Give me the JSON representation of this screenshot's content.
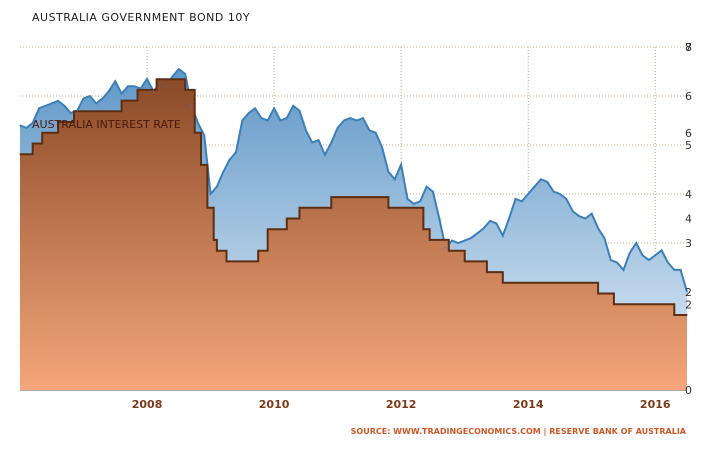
{
  "chart_data": {
    "type": "area",
    "title": "AUSTRALIA GOVERNMENT BOND 10Y",
    "source": "SOURCE: WWW.TRADINGECONOMICS.COM | RESERVE BANK OF AUSTRALIA",
    "grid": true,
    "x_tick_labels": [
      "2008",
      "2010",
      "2012",
      "2014",
      "2016"
    ],
    "x_ticks": [
      2008,
      2010,
      2012,
      2014,
      2016
    ],
    "xlim": [
      2006.0,
      2016.5
    ],
    "colors": {
      "bond_line": "#3d7fb8",
      "bond_fill_top": "#5f97c7",
      "bond_fill_bottom": "#e4eef8",
      "rate_line": "#5c2e12",
      "rate_fill_top": "#8a4a28",
      "rate_fill_bottom": "#f5a67a",
      "grid": "#c8a88a",
      "source": "#c85a2a"
    },
    "axes": {
      "bond": {
        "ylim": [
          0,
          7
        ],
        "tick_labels": [
          "7",
          "6",
          "5",
          "4",
          "3",
          "2"
        ],
        "ticks": [
          7,
          6,
          5,
          4,
          3,
          2
        ]
      },
      "rate": {
        "ylim": [
          0,
          8
        ],
        "tick_labels": [
          "8",
          "6",
          "4",
          "2",
          "0"
        ],
        "ticks": [
          8,
          6,
          4,
          2,
          0
        ]
      }
    },
    "series": [
      {
        "name": "AUSTRALIA GOVERNMENT BOND 10Y",
        "axis": "bond",
        "x": [
          2006.0,
          2006.1,
          2006.2,
          2006.3,
          2006.5,
          2006.6,
          2006.7,
          2006.8,
          2006.9,
          2007.0,
          2007.1,
          2007.2,
          2007.3,
          2007.4,
          2007.5,
          2007.6,
          2007.7,
          2007.8,
          2007.9,
          2008.0,
          2008.1,
          2008.2,
          2008.3,
          2008.4,
          2008.5,
          2008.6,
          2008.7,
          2008.8,
          2008.9,
          2009.0,
          2009.1,
          2009.2,
          2009.3,
          2009.4,
          2009.5,
          2009.6,
          2009.7,
          2009.8,
          2009.9,
          2010.0,
          2010.1,
          2010.2,
          2010.3,
          2010.4,
          2010.5,
          2010.6,
          2010.7,
          2010.8,
          2010.9,
          2011.0,
          2011.1,
          2011.2,
          2011.3,
          2011.4,
          2011.5,
          2011.6,
          2011.7,
          2011.8,
          2011.9,
          2012.0,
          2012.1,
          2012.2,
          2012.3,
          2012.4,
          2012.5,
          2012.6,
          2012.7,
          2012.8,
          2012.9,
          2013.0,
          2013.1,
          2013.2,
          2013.3,
          2013.4,
          2013.5,
          2013.6,
          2013.7,
          2013.8,
          2013.9,
          2014.0,
          2014.1,
          2014.2,
          2014.3,
          2014.4,
          2014.5,
          2014.6,
          2014.7,
          2014.8,
          2014.9,
          2015.0,
          2015.1,
          2015.2,
          2015.3,
          2015.4,
          2015.5,
          2015.6,
          2015.7,
          2015.8,
          2015.9,
          2016.0,
          2016.1,
          2016.2,
          2016.3,
          2016.4,
          2016.5
        ],
        "values": [
          5.4,
          5.35,
          5.45,
          5.75,
          5.85,
          5.9,
          5.8,
          5.65,
          5.7,
          5.95,
          6.0,
          5.85,
          5.95,
          6.1,
          6.3,
          6.05,
          6.2,
          6.2,
          6.15,
          6.35,
          6.1,
          6.25,
          6.2,
          6.4,
          6.55,
          6.45,
          5.8,
          5.45,
          5.2,
          4.0,
          4.15,
          4.45,
          4.7,
          4.85,
          5.5,
          5.65,
          5.75,
          5.55,
          5.5,
          5.75,
          5.5,
          5.55,
          5.8,
          5.7,
          5.3,
          5.05,
          5.1,
          4.8,
          5.05,
          5.35,
          5.5,
          5.55,
          5.5,
          5.55,
          5.3,
          5.25,
          4.95,
          4.45,
          4.3,
          4.6,
          3.9,
          3.8,
          3.85,
          4.15,
          4.05,
          3.5,
          2.9,
          3.05,
          3.0,
          3.05,
          3.1,
          3.2,
          3.3,
          3.45,
          3.4,
          3.15,
          3.5,
          3.9,
          3.85,
          4.0,
          4.15,
          4.3,
          4.25,
          4.05,
          4.0,
          3.9,
          3.65,
          3.55,
          3.5,
          3.6,
          3.3,
          3.1,
          2.65,
          2.6,
          2.45,
          2.8,
          3.0,
          2.75,
          2.65,
          2.75,
          2.85,
          2.6,
          2.45,
          2.45,
          2.0
        ]
      },
      {
        "name": "AUSTRALIA INTEREST RATE",
        "axis": "rate",
        "x": [
          2006.0,
          2006.2,
          2006.35,
          2006.6,
          2006.85,
          2007.6,
          2007.85,
          2008.15,
          2008.6,
          2008.75,
          2008.85,
          2008.95,
          2009.05,
          2009.1,
          2009.25,
          2009.75,
          2009.9,
          2010.2,
          2010.4,
          2010.9,
          2011.8,
          2012.35,
          2012.45,
          2012.6,
          2012.75,
          2013.0,
          2013.35,
          2013.6,
          2013.75,
          2015.1,
          2015.35,
          2016.3,
          2016.5
        ],
        "values": [
          5.5,
          5.75,
          6.0,
          6.25,
          6.5,
          6.75,
          7.0,
          7.25,
          7.0,
          6.0,
          5.25,
          4.25,
          3.5,
          3.25,
          3.0,
          3.25,
          3.75,
          4.0,
          4.25,
          4.5,
          4.25,
          3.75,
          3.5,
          3.5,
          3.25,
          3.0,
          2.75,
          2.5,
          2.5,
          2.25,
          2.0,
          1.75,
          1.75
        ]
      }
    ],
    "series_label_text": "AUSTRALIA INTEREST RATE"
  }
}
